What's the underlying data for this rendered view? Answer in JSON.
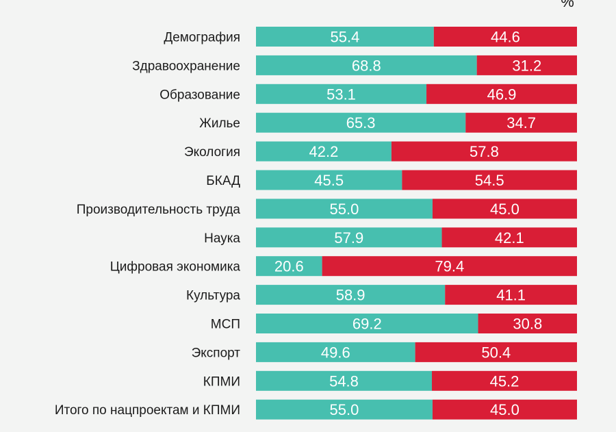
{
  "chart_data": {
    "type": "bar",
    "orientation": "horizontal",
    "stacked": true,
    "normalized": true,
    "unit": "%",
    "categories": [
      "Демография",
      "Здравоохранение",
      "Образование",
      "Жилье",
      "Экология",
      "БКАД",
      "Производительность труда",
      "Наука",
      "Цифровая экономика",
      "Культура",
      "МСП",
      "Экспорт",
      "КПМИ",
      "Итого по нацпроектам и КПМИ"
    ],
    "series": [
      {
        "color": "#47bfaf",
        "values": [
          55.4,
          68.8,
          53.1,
          65.3,
          42.2,
          45.5,
          55.0,
          57.9,
          20.6,
          58.9,
          69.2,
          49.6,
          54.8,
          55.0
        ],
        "labels": [
          "55.4",
          "68.8",
          "53.1",
          "65.3",
          "42.2",
          "45.5",
          "55.0",
          "57.9",
          "20.6",
          "58.9",
          "69.2",
          "49.6",
          "54.8",
          "55.0"
        ]
      },
      {
        "color": "#d91e36",
        "values": [
          44.6,
          31.2,
          46.9,
          34.7,
          57.8,
          54.5,
          45.0,
          42.1,
          79.4,
          41.1,
          30.8,
          50.4,
          45.2,
          45.0
        ],
        "labels": [
          "44.6",
          "31.2",
          "46.9",
          "34.7",
          "57.8",
          "54.5",
          "45.0",
          "42.1",
          "79.4",
          "41.1",
          "30.8",
          "50.4",
          "45.2",
          "45.0"
        ]
      }
    ],
    "xlim": [
      0,
      100
    ],
    "grid": false,
    "legend": "none"
  }
}
